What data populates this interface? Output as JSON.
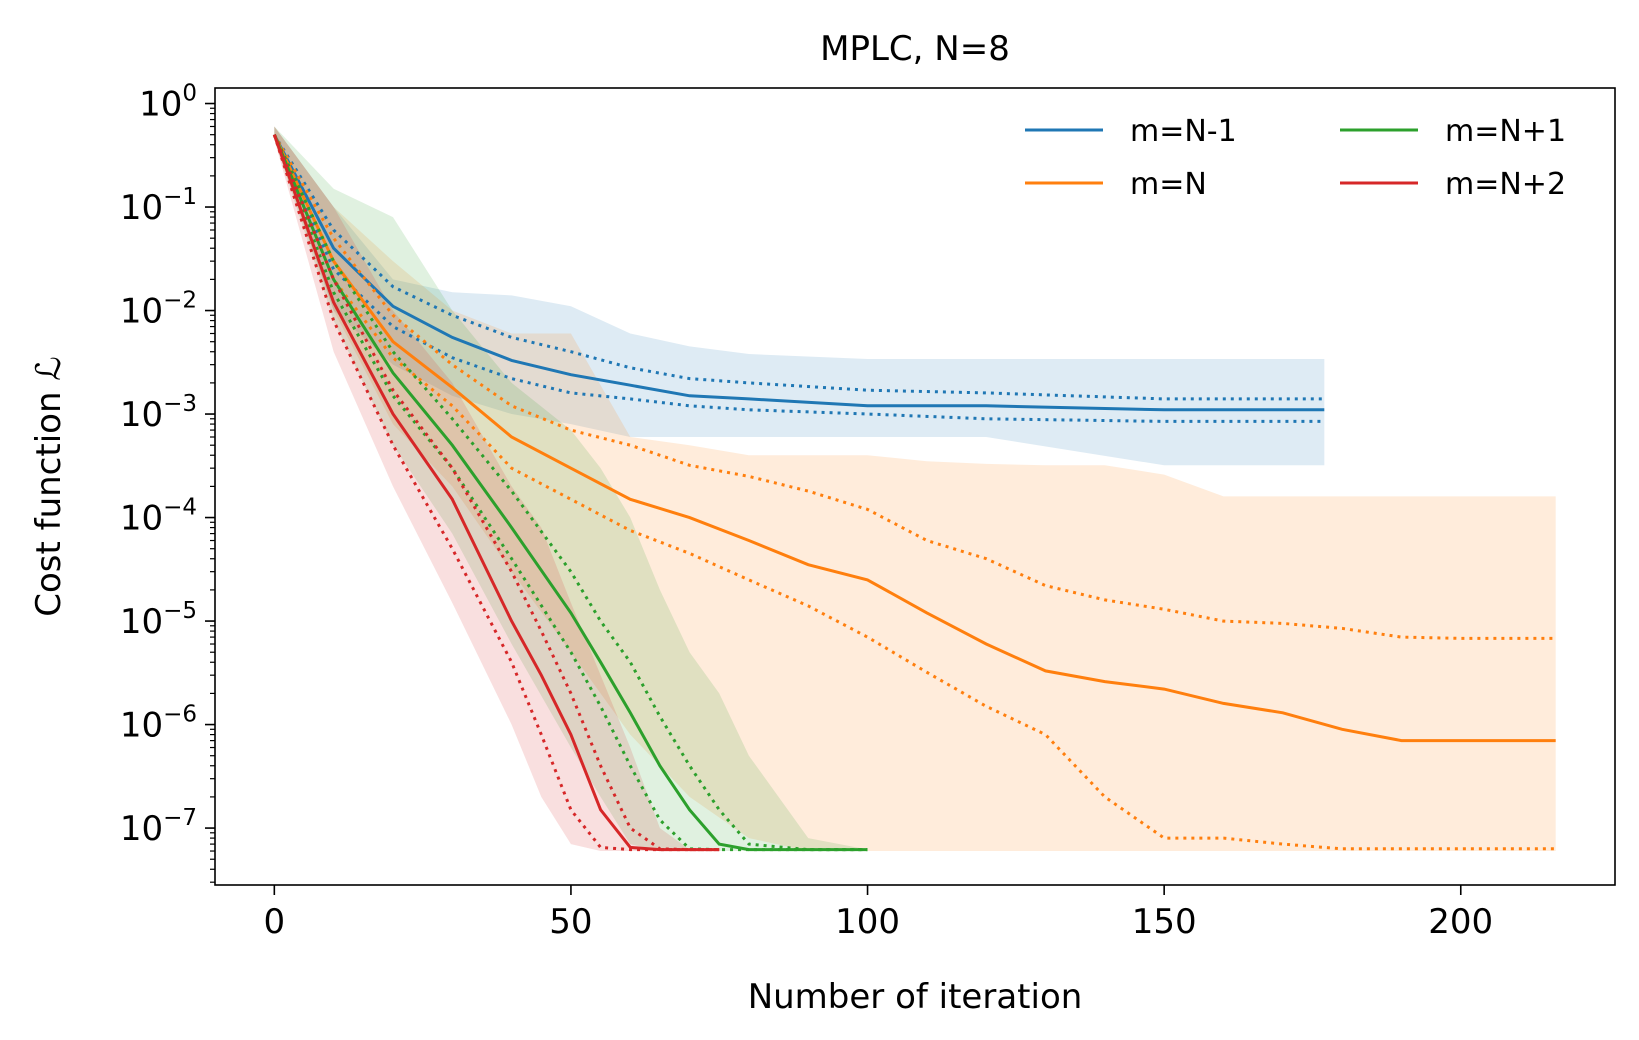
{
  "chart_data": {
    "type": "line",
    "title": "MPLC, N=8",
    "xlabel": "Number of iteration",
    "ylabel": "Cost function ℒ",
    "xlim": [
      -10,
      226
    ],
    "ylim_log10": [
      -7.55,
      0.15
    ],
    "yscale": "log",
    "grid": false,
    "legend_position": "top-right",
    "x_ticks": [
      0,
      50,
      100,
      150,
      200
    ],
    "y_ticks": [
      {
        "value": 1,
        "base": "10",
        "exp": "0"
      },
      {
        "value": 0.1,
        "base": "10",
        "exp": "−1"
      },
      {
        "value": 0.01,
        "base": "10",
        "exp": "−2"
      },
      {
        "value": 0.001,
        "base": "10",
        "exp": "−3"
      },
      {
        "value": 0.0001,
        "base": "10",
        "exp": "−4"
      },
      {
        "value": 1e-05,
        "base": "10",
        "exp": "−5"
      },
      {
        "value": 1e-06,
        "base": "10",
        "exp": "−6"
      },
      {
        "value": 1e-07,
        "base": "10",
        "exp": "−7"
      }
    ],
    "series": [
      {
        "name": "m=N-1",
        "color": "#1f77b4",
        "x": [
          0,
          10,
          20,
          30,
          40,
          50,
          60,
          70,
          80,
          100,
          120,
          150,
          177
        ],
        "median": [
          0.5,
          0.04,
          0.011,
          0.0055,
          0.0033,
          0.0024,
          0.0019,
          0.0015,
          0.0014,
          0.0012,
          0.0012,
          0.0011,
          0.0011
        ],
        "q_upper": [
          0.5,
          0.06,
          0.017,
          0.009,
          0.0055,
          0.004,
          0.0028,
          0.0022,
          0.002,
          0.0017,
          0.0016,
          0.0014,
          0.0014
        ],
        "q_lower": [
          0.5,
          0.025,
          0.007,
          0.0035,
          0.0022,
          0.0016,
          0.0014,
          0.0012,
          0.0011,
          0.001,
          0.0009,
          0.00085,
          0.00085
        ],
        "band_upper": [
          0.6,
          0.1,
          0.02,
          0.015,
          0.014,
          0.011,
          0.006,
          0.0045,
          0.0038,
          0.0034,
          0.0034,
          0.0034,
          0.0034
        ],
        "band_lower": [
          0.45,
          0.01,
          0.003,
          0.0015,
          0.001,
          0.0008,
          0.0006,
          0.0006,
          0.0006,
          0.0006,
          0.0006,
          0.00032,
          0.00032
        ]
      },
      {
        "name": "m=N",
        "color": "#ff7f0e",
        "x": [
          0,
          10,
          20,
          30,
          40,
          50,
          60,
          70,
          80,
          90,
          100,
          110,
          120,
          130,
          140,
          150,
          160,
          170,
          180,
          190,
          200,
          216
        ],
        "median": [
          0.5,
          0.03,
          0.005,
          0.0018,
          0.0006,
          0.0003,
          0.00015,
          0.0001,
          6e-05,
          3.5e-05,
          2.5e-05,
          1.2e-05,
          6e-06,
          3.3e-06,
          2.6e-06,
          2.2e-06,
          1.6e-06,
          1.3e-06,
          9e-07,
          7e-07,
          7e-07,
          7e-07
        ],
        "q_upper": [
          0.5,
          0.05,
          0.009,
          0.003,
          0.0012,
          0.0007,
          0.0005,
          0.00032,
          0.00025,
          0.00018,
          0.00012,
          6e-05,
          4e-05,
          2.2e-05,
          1.6e-05,
          1.3e-05,
          1e-05,
          9.5e-06,
          8.5e-06,
          7e-06,
          6.8e-06,
          6.8e-06
        ],
        "q_lower": [
          0.5,
          0.02,
          0.0035,
          0.0012,
          0.0003,
          0.00015,
          7.5e-05,
          4.5e-05,
          2.5e-05,
          1.4e-05,
          7e-06,
          3.2e-06,
          1.5e-06,
          8e-07,
          2e-07,
          8e-08,
          8e-08,
          7e-08,
          6.3e-08,
          6.3e-08,
          6.3e-08,
          6.3e-08
        ],
        "band_upper": [
          0.6,
          0.1,
          0.03,
          0.01,
          0.006,
          0.006,
          0.0006,
          0.0005,
          0.0004,
          0.0004,
          0.0004,
          0.00035,
          0.00033,
          0.00032,
          0.00032,
          0.00026,
          0.00016,
          0.00016,
          0.00016,
          0.00016,
          0.00016,
          0.00016
        ],
        "band_lower": [
          0.45,
          0.01,
          0.0008,
          0.0002,
          3e-05,
          5e-06,
          8e-07,
          2e-07,
          8e-08,
          6e-08,
          6e-08,
          6e-08,
          6e-08,
          6e-08,
          6e-08,
          6e-08,
          6e-08,
          6e-08,
          6e-08,
          6e-08,
          6e-08,
          6e-08
        ]
      },
      {
        "name": "m=N+1",
        "color": "#2ca02c",
        "x": [
          0,
          10,
          20,
          30,
          40,
          50,
          55,
          60,
          65,
          70,
          75,
          80,
          90,
          100
        ],
        "median": [
          0.5,
          0.02,
          0.0025,
          0.0005,
          8e-05,
          1.2e-05,
          4e-06,
          1.3e-06,
          4e-07,
          1.5e-07,
          7e-08,
          6.2e-08,
          6.2e-08,
          6.2e-08
        ],
        "q_upper": [
          0.5,
          0.03,
          0.004,
          0.0009,
          0.00018,
          3e-05,
          1e-05,
          4e-06,
          1.2e-06,
          4e-07,
          1.5e-07,
          7e-08,
          6.2e-08,
          6.2e-08
        ],
        "q_lower": [
          0.5,
          0.015,
          0.0015,
          0.0003,
          4e-05,
          5e-06,
          1.5e-06,
          4e-07,
          1.2e-07,
          6.3e-08,
          6.2e-08,
          6.2e-08,
          6.2e-08,
          6.2e-08
        ],
        "band_upper": [
          0.6,
          0.15,
          0.08,
          0.01,
          0.002,
          0.0007,
          0.0003,
          0.0001,
          2e-05,
          5e-06,
          2e-06,
          5e-07,
          8e-08,
          6.2e-08
        ],
        "band_lower": [
          0.45,
          0.008,
          0.0005,
          7e-05,
          6e-06,
          6e-07,
          2e-07,
          7e-08,
          6e-08,
          6e-08,
          6e-08,
          6e-08,
          6e-08,
          6e-08
        ]
      },
      {
        "name": "m=N+2",
        "color": "#d62728",
        "x": [
          0,
          10,
          20,
          30,
          40,
          45,
          50,
          55,
          60,
          65,
          70,
          75
        ],
        "median": [
          0.5,
          0.012,
          0.001,
          0.00015,
          1e-05,
          3e-06,
          8e-07,
          1.5e-07,
          6.5e-08,
          6.2e-08,
          6.2e-08,
          6.2e-08
        ],
        "q_upper": [
          0.5,
          0.02,
          0.0017,
          0.0003,
          3e-05,
          8e-06,
          2e-06,
          4e-07,
          1e-07,
          6.3e-08,
          6.2e-08,
          6.2e-08
        ],
        "q_lower": [
          0.5,
          0.008,
          0.0005,
          5e-05,
          4e-06,
          8e-07,
          1.5e-07,
          6.5e-08,
          6.2e-08,
          6.2e-08,
          6.2e-08,
          6.2e-08
        ],
        "band_upper": [
          0.6,
          0.1,
          0.01,
          0.002,
          0.0002,
          8e-05,
          1.5e-05,
          3e-06,
          6e-07,
          1e-07,
          6.2e-08,
          6.2e-08
        ],
        "band_lower": [
          0.45,
          0.004,
          0.0002,
          1.5e-05,
          1e-06,
          2e-07,
          7e-08,
          6e-08,
          6e-08,
          6e-08,
          6e-08,
          6e-08
        ]
      }
    ]
  }
}
